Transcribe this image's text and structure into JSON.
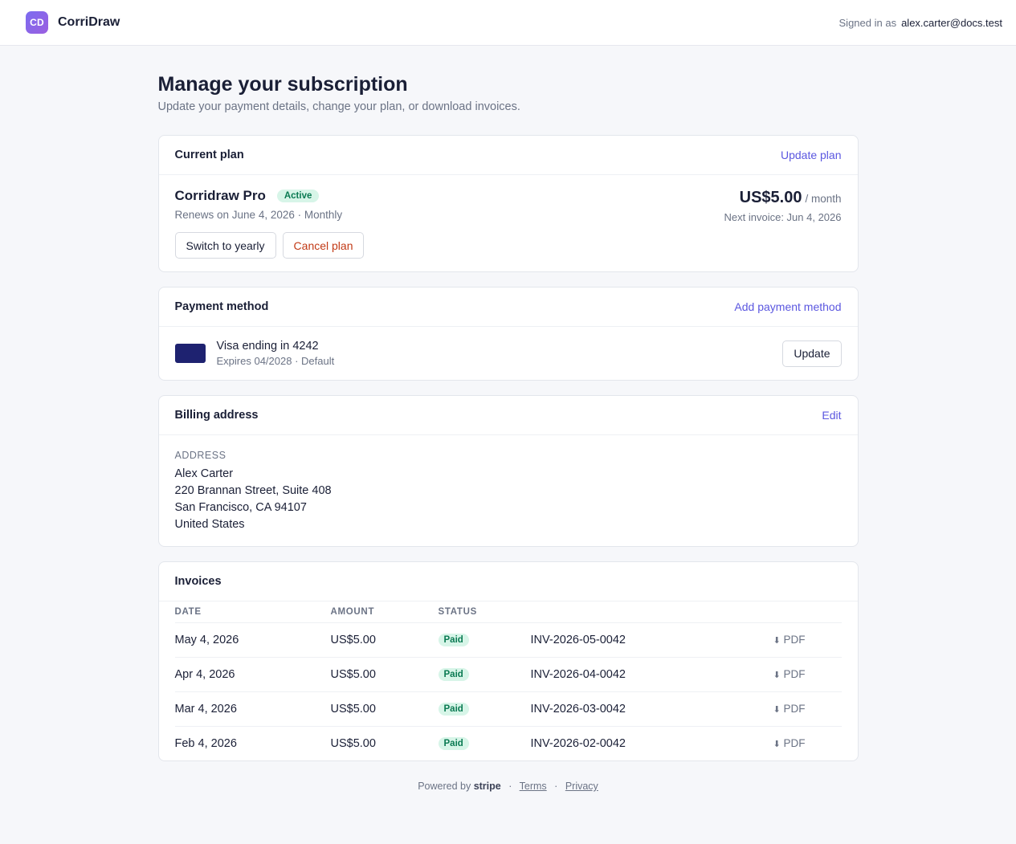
{
  "topbar": {
    "logo_text": "CD",
    "brand_name": "CorriDraw",
    "signed_in_label": "Signed in as",
    "signed_in_email": "alex.carter@docs.test"
  },
  "page": {
    "title": "Manage your subscription",
    "subtitle": "Update your payment details, change your plan, or download invoices."
  },
  "current_plan": {
    "section_title": "Current plan",
    "update_link": "Update plan",
    "plan_name": "Corridraw Pro",
    "status": "Active",
    "renewal": "Renews on June 4, 2026 · Monthly",
    "switch_button": "Switch to yearly",
    "cancel_button": "Cancel plan",
    "price": "US$5.00",
    "price_unit": "/ month",
    "next_invoice": "Next invoice: Jun 4, 2026"
  },
  "payment_method": {
    "section_title": "Payment method",
    "add_link": "Add payment method",
    "card_title": "Visa ending in 4242",
    "card_sub": "Expires 04/2028 · Default",
    "update_button": "Update"
  },
  "billing_address": {
    "section_title": "Billing address",
    "edit_link": "Edit",
    "label": "ADDRESS",
    "lines": [
      "Alex Carter",
      "220 Brannan Street, Suite 408",
      "San Francisco, CA 94107",
      "United States"
    ]
  },
  "invoices": {
    "section_title": "Invoices",
    "columns": [
      "DATE",
      "AMOUNT",
      "STATUS"
    ],
    "rows": [
      {
        "date": "May 4, 2026",
        "amount": "US$5.00",
        "status": "Paid",
        "number": "INV-2026-05-0042",
        "pdf": "PDF"
      },
      {
        "date": "Apr 4, 2026",
        "amount": "US$5.00",
        "status": "Paid",
        "number": "INV-2026-04-0042",
        "pdf": "PDF"
      },
      {
        "date": "Mar 4, 2026",
        "amount": "US$5.00",
        "status": "Paid",
        "number": "INV-2026-03-0042",
        "pdf": "PDF"
      },
      {
        "date": "Feb 4, 2026",
        "amount": "US$5.00",
        "status": "Paid",
        "number": "INV-2026-02-0042",
        "pdf": "PDF"
      }
    ]
  },
  "footer": {
    "powered_by": "Powered by",
    "stripe": "stripe",
    "terms": "Terms",
    "privacy": "Privacy"
  },
  "icons": {
    "download": "download-arrow-icon"
  },
  "colors": {
    "accent": "#5b57e0",
    "danger": "#c23a16",
    "paid_bg": "#d7f5e8",
    "paid_text": "#0a7a52",
    "card_chip": "#1e2270"
  }
}
